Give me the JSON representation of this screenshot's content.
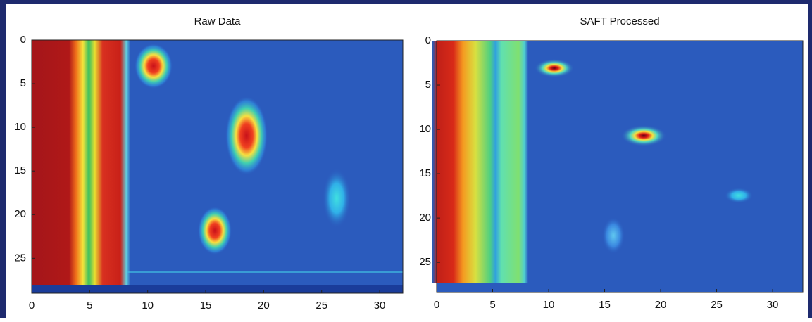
{
  "chart_data": [
    {
      "type": "heatmap",
      "title": "Raw Data",
      "xlim": [
        0,
        32
      ],
      "xticks": [
        0,
        5,
        10,
        15,
        20,
        25,
        30
      ],
      "ylim": [
        0,
        29
      ],
      "yticks": [
        0,
        5,
        10,
        15,
        20,
        25
      ],
      "y_inverted": true
    },
    {
      "type": "heatmap",
      "title": "SAFT Processed",
      "xlim": [
        0,
        32.7
      ],
      "xticks": [
        0,
        5,
        10,
        15,
        20,
        25,
        30
      ],
      "ylim": [
        0,
        28.4
      ],
      "yticks": [
        0,
        5,
        10,
        15,
        20,
        25
      ],
      "y_inverted": true
    }
  ]
}
